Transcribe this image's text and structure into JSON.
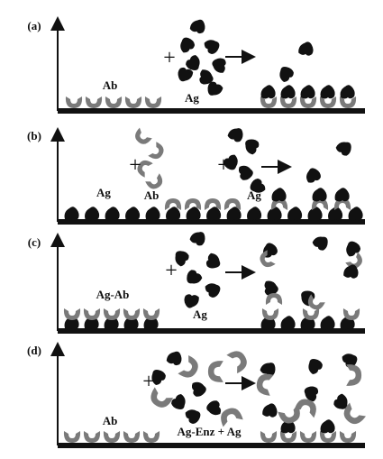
{
  "panels": [
    {
      "label": "(a)",
      "labels": [
        "Ab",
        "Ag"
      ],
      "plus": [
        "+"
      ]
    },
    {
      "label": "(b)",
      "labels": [
        "Ag",
        "Ab",
        "Ag"
      ],
      "plus": [
        "+",
        "+"
      ]
    },
    {
      "label": "(c)",
      "labels": [
        "Ag-Ab",
        "Ag"
      ],
      "plus": [
        "+"
      ]
    },
    {
      "label": "(d)",
      "labels": [
        "Ab",
        "Ag-Enz + Ag"
      ],
      "plus": [
        "+"
      ]
    }
  ]
}
